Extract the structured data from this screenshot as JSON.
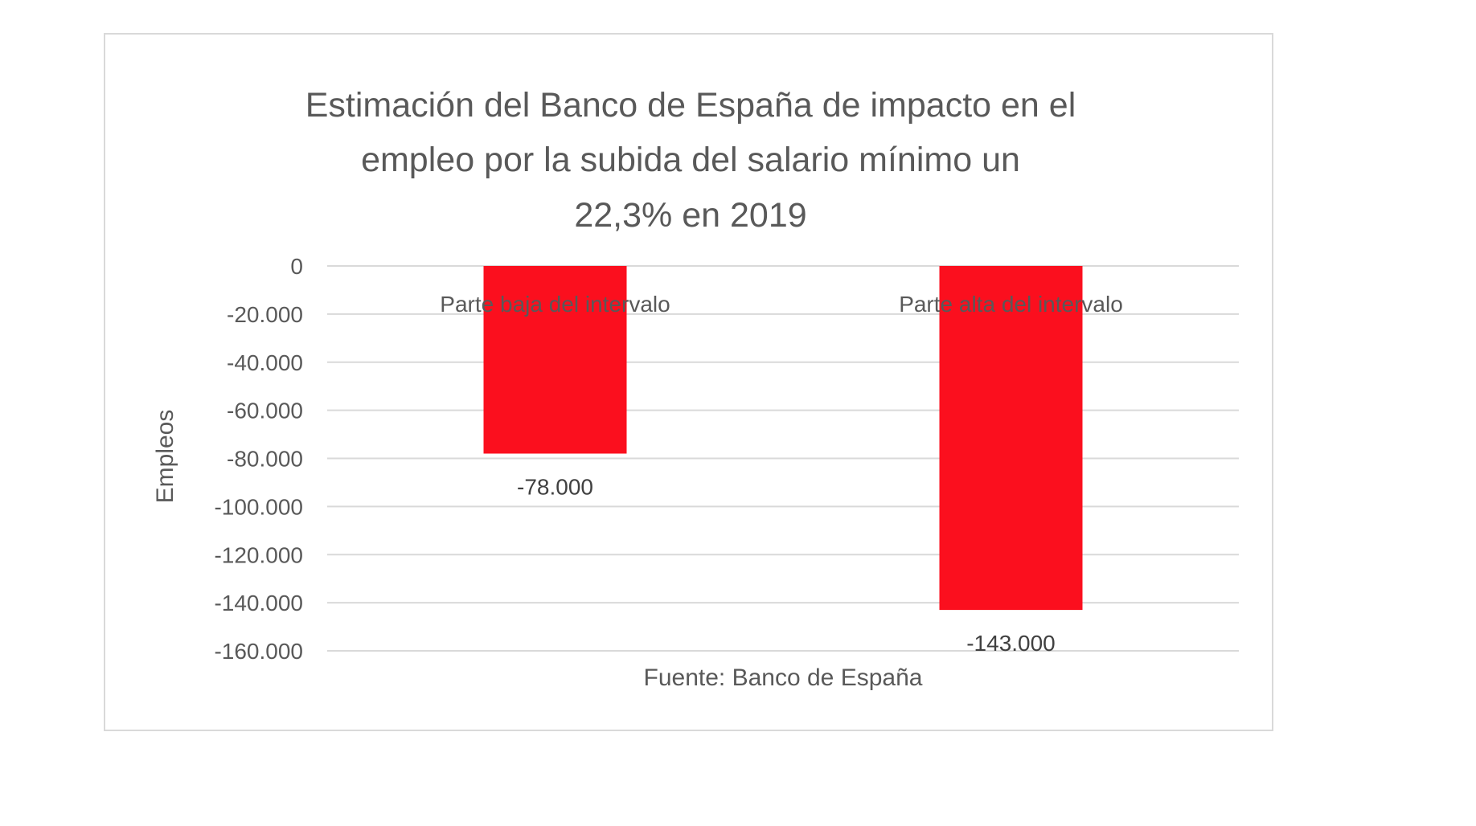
{
  "chart_data": {
    "type": "bar",
    "title_lines": [
      "Estimación del Banco de España de impacto en el",
      "empleo por la subida del salario mínimo un",
      "22,3% en 2019"
    ],
    "categories": [
      "Parte baja del intervalo",
      "Parte alta del intervalo"
    ],
    "values": [
      -78000,
      -143000
    ],
    "value_labels": [
      "-78.000",
      "-143.000"
    ],
    "xlabel": "Fuente: Banco de España",
    "ylabel": "Empleos",
    "ylim": [
      -160000,
      0
    ],
    "yticks": [
      0,
      -20000,
      -40000,
      -60000,
      -80000,
      -100000,
      -120000,
      -140000,
      -160000
    ],
    "ytick_labels": [
      "0",
      "-20.000",
      "-40.000",
      "-60.000",
      "-80.000",
      "-100.000",
      "-120.000",
      "-140.000",
      "-160.000"
    ],
    "grid": true,
    "bar_color": "#fb0f1e",
    "gridline_color": "#d9d9d9",
    "text_color": "#595959"
  }
}
